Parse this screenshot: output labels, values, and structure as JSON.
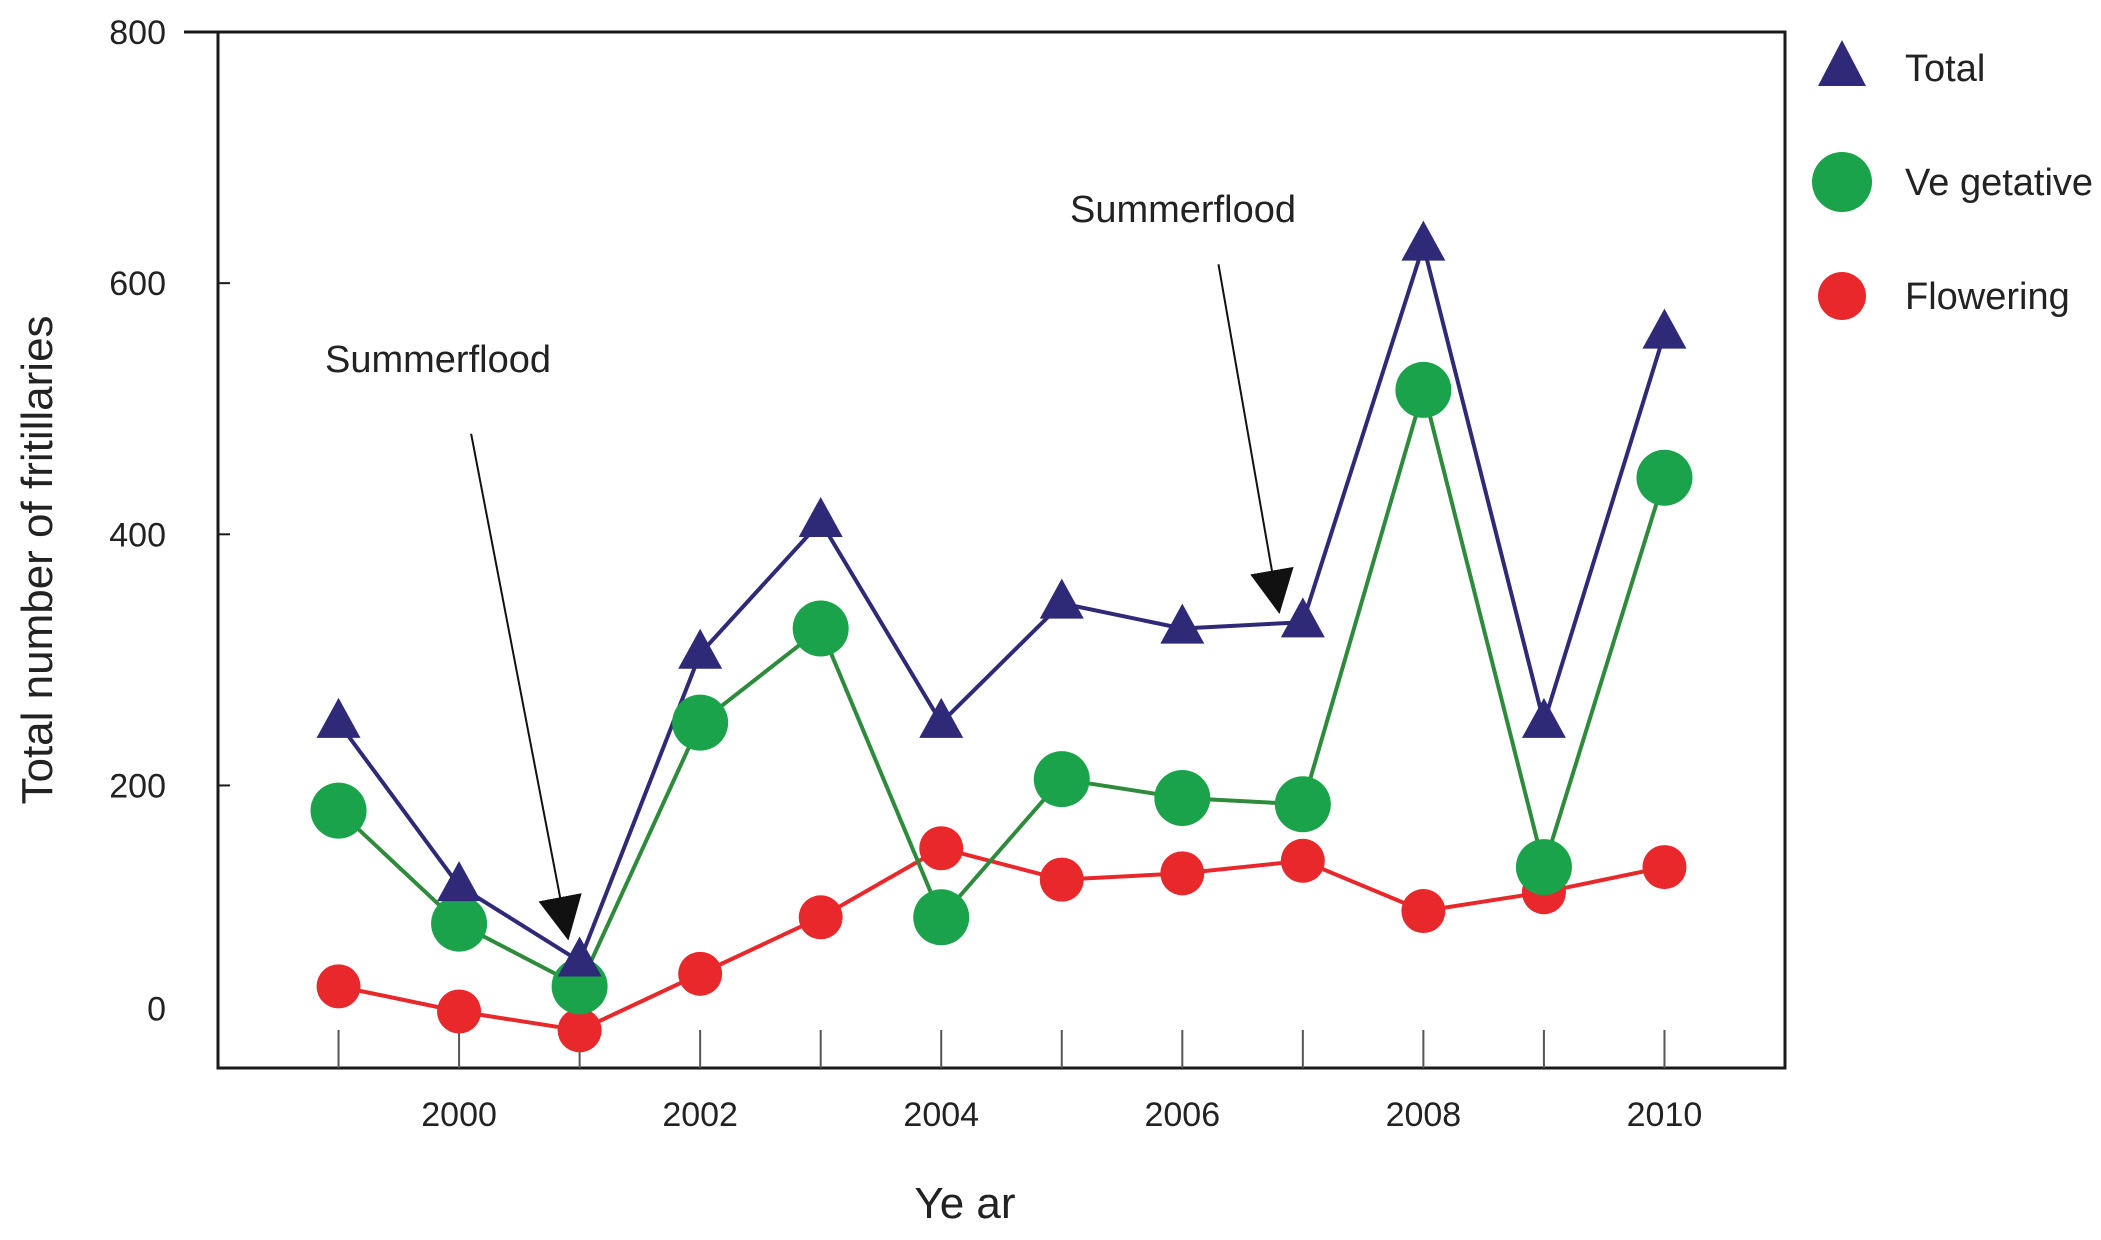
{
  "chart_data": {
    "type": "line",
    "title": "",
    "xlabel": "Ye ar",
    "ylabel": "Total number of fritillaries",
    "x": [
      1999,
      2000,
      2001,
      2002,
      2003,
      2004,
      2005,
      2006,
      2007,
      2008,
      2009,
      2010
    ],
    "xlim": [
      1998,
      2011
    ],
    "ylim": [
      -25,
      800
    ],
    "x_ticks": [
      2000,
      2002,
      2004,
      2006,
      2008,
      2010
    ],
    "x_tick_labels": [
      "2000",
      "2002",
      "2004",
      "2006",
      "2008",
      "2010"
    ],
    "y_ticks": [
      0,
      200,
      400,
      600,
      800
    ],
    "y_tick_labels": [
      "0",
      "200",
      "400",
      "600",
      "800"
    ],
    "grid": false,
    "legend_position": "outside-right",
    "series": [
      {
        "name": "Total",
        "marker": "triangle",
        "color": "#2e2a78",
        "values": [
          250,
          120,
          60,
          305,
          410,
          250,
          345,
          325,
          330,
          630,
          250,
          560
        ]
      },
      {
        "name": "Ve getative",
        "marker": "circle",
        "color": "#1aa34a",
        "line_color": "#2e8b3c",
        "values": [
          180,
          90,
          40,
          250,
          325,
          95,
          205,
          190,
          185,
          515,
          135,
          445
        ]
      },
      {
        "name": "Flowering",
        "marker": "circle",
        "color": "#e8282b",
        "values": [
          40,
          20,
          5,
          50,
          95,
          150,
          125,
          130,
          140,
          100,
          115,
          135
        ]
      }
    ],
    "annotations": [
      {
        "text": "Summerflood",
        "arrow_from": [
          2000.1,
          480
        ],
        "arrow_to": [
          2000.9,
          80
        ]
      },
      {
        "text": "Summerflood",
        "arrow_from": [
          2006.3,
          615
        ],
        "arrow_to": [
          2006.8,
          340
        ]
      }
    ]
  }
}
